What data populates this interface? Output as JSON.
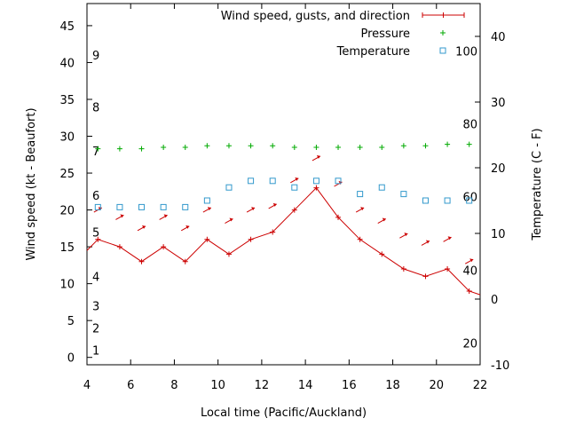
{
  "chart_data": {
    "type": "line",
    "title": "",
    "xlabel": "Local time (Pacific/Auckland)",
    "ylabel": "Wind speed (kt - Beaufort)",
    "y2label": "Temperature (C - F)",
    "xlim": [
      4,
      22
    ],
    "ylim": [
      -1,
      48
    ],
    "y2lim": [
      -10,
      45
    ],
    "grid": false,
    "legend_position": "top-right",
    "x_ticks": [
      4,
      6,
      8,
      10,
      12,
      14,
      16,
      18,
      20,
      22
    ],
    "y_ticks": [
      0,
      5,
      10,
      15,
      20,
      25,
      30,
      35,
      40,
      45
    ],
    "y2_ticks": [
      -10,
      0,
      10,
      20,
      30,
      40
    ],
    "beaufort_labels": [
      {
        "label": "1",
        "kt": 1
      },
      {
        "label": "2",
        "kt": 4
      },
      {
        "label": "3",
        "kt": 7
      },
      {
        "label": "4",
        "kt": 11
      },
      {
        "label": "5",
        "kt": 17
      },
      {
        "label": "6",
        "kt": 22
      },
      {
        "label": "7",
        "kt": 28
      },
      {
        "label": "8",
        "kt": 34
      },
      {
        "label": "9",
        "kt": 41
      }
    ],
    "fahrenheit_labels": [
      {
        "label": "20",
        "c": -6.7
      },
      {
        "label": "40",
        "c": 4.4
      },
      {
        "label": "60",
        "c": 15.6
      },
      {
        "label": "80",
        "c": 26.7
      },
      {
        "label": "100",
        "c": 37.8
      }
    ],
    "series": [
      {
        "name": "Wind speed, gusts, and direction",
        "color": "#cc0000",
        "marker": "plus",
        "axis": "left",
        "x": [
          4.0,
          4.5,
          5.5,
          6.5,
          7.5,
          8.5,
          9.5,
          10.5,
          11.5,
          12.5,
          13.5,
          14.5,
          15.5,
          16.5,
          17.5,
          18.5,
          19.5,
          20.5,
          21.5,
          22.0
        ],
        "values": [
          14.5,
          16,
          15,
          13,
          15,
          13,
          16,
          14,
          16,
          17,
          20,
          23,
          19,
          16,
          14,
          12,
          11,
          12,
          9,
          8.5
        ]
      },
      {
        "name": "Pressure",
        "color": "#00aa00",
        "marker": "plus",
        "axis": "left",
        "x": [
          4.5,
          5.5,
          6.5,
          7.5,
          8.5,
          9.5,
          10.5,
          11.5,
          12.5,
          13.5,
          14.5,
          15.5,
          16.5,
          17.5,
          18.5,
          19.5,
          20.5,
          21.5
        ],
        "values": [
          28.3,
          28.3,
          28.3,
          28.5,
          28.5,
          28.7,
          28.7,
          28.7,
          28.7,
          28.5,
          28.5,
          28.5,
          28.5,
          28.5,
          28.7,
          28.7,
          28.9,
          28.9
        ]
      },
      {
        "name": "Temperature",
        "color": "#3399cc",
        "marker": "square",
        "axis": "right",
        "x": [
          4.5,
          5.5,
          6.5,
          7.5,
          8.5,
          9.5,
          10.5,
          11.5,
          12.5,
          13.5,
          14.5,
          15.5,
          16.5,
          17.5,
          18.5,
          19.5,
          20.5,
          21.5
        ],
        "values": [
          14,
          14,
          14,
          14,
          14,
          15,
          17,
          18,
          18,
          17,
          18,
          18,
          16,
          17,
          16,
          15,
          15,
          15
        ]
      }
    ],
    "direction_arrows": {
      "color": "#cc0000",
      "x": [
        4.5,
        5.5,
        6.5,
        7.5,
        8.5,
        9.5,
        10.5,
        11.5,
        12.5,
        13.5,
        14.5,
        15.5,
        16.5,
        17.5,
        18.5,
        19.5,
        20.5,
        21.5
      ],
      "y": [
        20,
        19,
        17.5,
        19,
        17.5,
        20,
        18.5,
        20,
        20.5,
        24,
        27,
        23.5,
        20,
        18.5,
        16.5,
        15.5,
        16,
        13
      ]
    }
  }
}
